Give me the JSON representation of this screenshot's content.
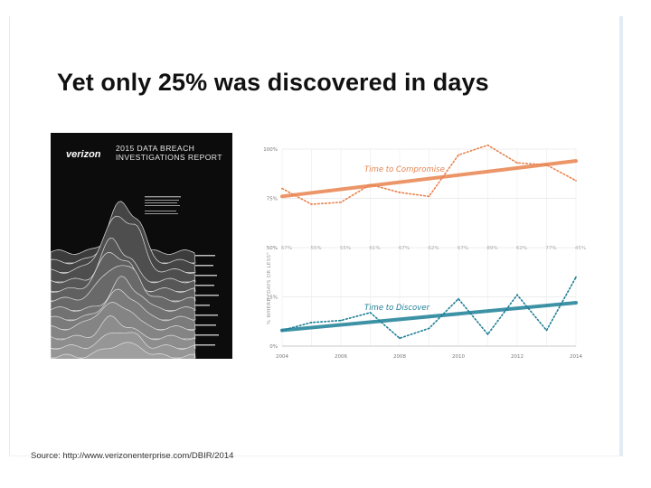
{
  "slide": {
    "title": "Yet only 25% was discovered in days",
    "source": "Source: http://www.verizonenterprise.com/DBIR/2014"
  },
  "cover": {
    "brand": "verizon",
    "title_line1": "2015 DATA BREACH",
    "title_line2": "INVESTIGATIONS REPORT",
    "background": "#0c0c0c"
  },
  "chart_data": {
    "type": "line",
    "xlabel": "",
    "ylabel": "% WHERE \"DAYS OR LESS\"",
    "x": [
      2004,
      2005,
      2006,
      2007,
      2008,
      2009,
      2010,
      2011,
      2012,
      2013,
      2014
    ],
    "x_ticks": [
      "2004",
      "2006",
      "2008",
      "2010",
      "2012",
      "2014"
    ],
    "y_ticks": [
      "100%",
      "75%",
      "50%",
      "25%",
      "0%"
    ],
    "ylim": [
      0,
      100
    ],
    "series": [
      {
        "name": "Time to Compromise",
        "color": "#e8834e",
        "style": "dotted",
        "values": [
          80,
          72,
          73,
          82,
          78,
          76,
          97,
          102,
          93,
          92,
          84
        ],
        "trend": [
          76,
          94
        ]
      },
      {
        "name": "Time to Discover",
        "color": "#1d7f96",
        "style": "dotted",
        "values": [
          8,
          12,
          13,
          17,
          4,
          9,
          24,
          6,
          26,
          8,
          35
        ],
        "trend": [
          8,
          22
        ]
      }
    ],
    "gap_labels": [
      "67%",
      "55%",
      "55%",
      "61%",
      "67%",
      "62%",
      "67%",
      "89%",
      "62%",
      "77%",
      "45%"
    ],
    "grid": true,
    "legend": "inline"
  }
}
